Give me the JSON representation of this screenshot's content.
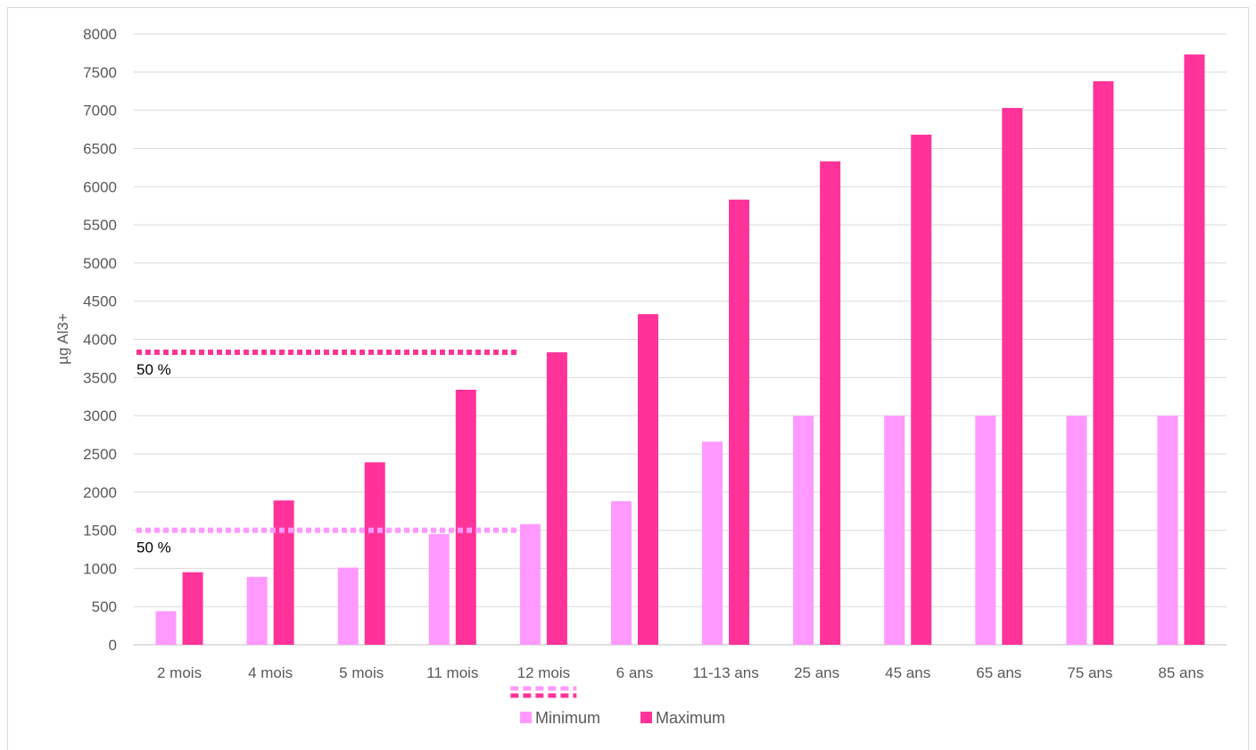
{
  "chart_data": {
    "type": "bar",
    "title": "",
    "xlabel": "",
    "ylabel": "µg Al3+",
    "ylim": [
      0,
      8000
    ],
    "y_ticks": [
      0,
      500,
      1000,
      1500,
      2000,
      2500,
      3000,
      3500,
      4000,
      4500,
      5000,
      5500,
      6000,
      6500,
      7000,
      7500,
      8000
    ],
    "grid": true,
    "legend_position": "bottom",
    "categories": [
      "2 mois",
      "4 mois",
      "5 mois",
      "11 mois",
      "12 mois",
      "6 ans",
      "11-13 ans",
      "25 ans",
      "45 ans",
      "65 ans",
      "75 ans",
      "85 ans"
    ],
    "series": [
      {
        "name": "Minimum",
        "color": "#ff99ff",
        "values": [
          440,
          890,
          1010,
          1450,
          1580,
          1880,
          2660,
          3000,
          3000,
          3000,
          3000,
          3000
        ]
      },
      {
        "name": "Maximum",
        "color": "#ff3399",
        "values": [
          950,
          1890,
          2390,
          3340,
          3830,
          4330,
          5830,
          6330,
          6680,
          7030,
          7380,
          7730
        ]
      }
    ],
    "annotations": [
      {
        "text": "50 %",
        "y": 3830,
        "series": "Maximum",
        "color": "#ff3399"
      },
      {
        "text": "50 %",
        "y": 1500,
        "series": "Minimum",
        "color": "#ff99ff"
      }
    ]
  }
}
